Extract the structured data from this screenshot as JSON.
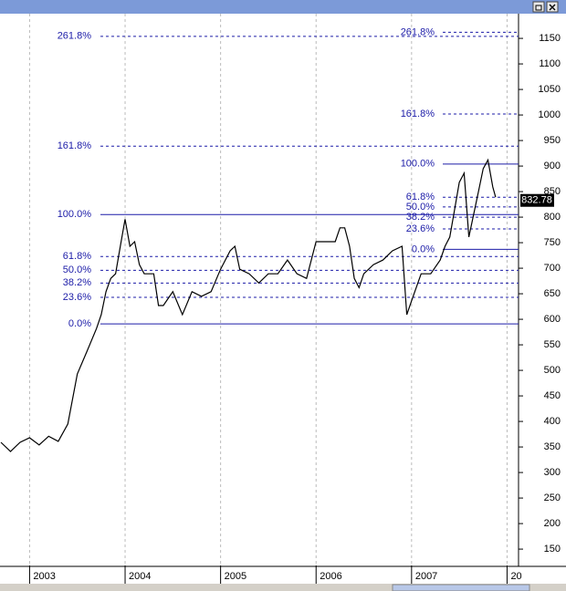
{
  "chart_data": {
    "type": "line",
    "x": [
      2002.7,
      2002.8,
      2002.9,
      2003.0,
      2003.1,
      2003.2,
      2003.3,
      2003.4,
      2003.5,
      2003.6,
      2003.7,
      2003.75,
      2003.8,
      2003.85,
      2003.9,
      2003.95,
      2004.0,
      2004.05,
      2004.1,
      2004.15,
      2004.2,
      2004.3,
      2004.35,
      2004.4,
      2004.5,
      2004.6,
      2004.7,
      2004.8,
      2004.9,
      2005.0,
      2005.1,
      2005.15,
      2005.2,
      2005.3,
      2005.4,
      2005.5,
      2005.6,
      2005.7,
      2005.8,
      2005.9,
      2006.0,
      2006.1,
      2006.2,
      2006.25,
      2006.3,
      2006.35,
      2006.4,
      2006.45,
      2006.5,
      2006.6,
      2006.7,
      2006.8,
      2006.9,
      2006.95,
      2007.0,
      2007.1,
      2007.2,
      2007.3,
      2007.35,
      2007.4,
      2007.45,
      2007.5,
      2007.55,
      2007.6,
      2007.65,
      2007.7,
      2007.75,
      2007.8,
      2007.85,
      2007.88
    ],
    "series": [
      {
        "color": "#000000",
        "values": [
          359,
          341,
          359,
          368,
          354,
          371,
          361,
          395,
          493,
          537,
          582,
          609,
          654,
          680,
          689,
          743,
          796,
          743,
          752,
          707,
          689,
          689,
          627,
          627,
          654,
          609,
          654,
          645,
          654,
          698,
          734,
          743,
          698,
          689,
          671,
          689,
          689,
          716,
          689,
          680,
          752,
          752,
          752,
          779,
          779,
          743,
          680,
          662,
          689,
          707,
          716,
          734,
          743,
          609,
          636,
          689,
          689,
          716,
          743,
          761,
          814,
          868,
          886,
          761,
          805,
          850,
          895,
          912,
          859,
          839
        ]
      }
    ],
    "last_price": 832.78,
    "xlim": [
      2002.69,
      2008.12
    ],
    "xticks": [
      2003,
      2004,
      2005,
      2006,
      2007,
      {
        "value": 2008,
        "label": "20"
      }
    ],
    "ylim": [
      118,
      1193
    ],
    "yticks": [
      150,
      200,
      250,
      300,
      350,
      400,
      450,
      500,
      550,
      600,
      650,
      700,
      750,
      800,
      850,
      900,
      950,
      1000,
      1050,
      1100,
      1150
    ],
    "grid": true,
    "fib_sets": [
      {
        "levels": [
          {
            "label": "261.8%",
            "value": 1154,
            "dashed": true
          },
          {
            "label": "161.8%",
            "value": 939,
            "dashed": true
          },
          {
            "label": "100.0%",
            "value": 805,
            "dashed": false
          },
          {
            "label": "61.8%",
            "value": 723,
            "dashed": true
          },
          {
            "label": "50.0%",
            "value": 696,
            "dashed": true
          },
          {
            "label": "38.2%",
            "value": 671,
            "dashed": true
          },
          {
            "label": "23.6%",
            "value": 643,
            "dashed": true
          },
          {
            "label": "0.0%",
            "value": 591,
            "dashed": false
          }
        ]
      },
      {
        "levels": [
          {
            "label": "261.8%",
            "value": 1162,
            "dashed": true
          },
          {
            "label": "161.8%",
            "value": 1002,
            "dashed": true
          },
          {
            "label": "100.0%",
            "value": 904,
            "dashed": false
          },
          {
            "label": "61.8%",
            "value": 839,
            "dashed": true
          },
          {
            "label": "50.0%",
            "value": 820,
            "dashed": true
          },
          {
            "label": "38.2%",
            "value": 800,
            "dashed": true
          },
          {
            "label": "23.6%",
            "value": 777,
            "dashed": true
          },
          {
            "label": "0.0%",
            "value": 737,
            "dashed": false
          }
        ]
      }
    ]
  }
}
